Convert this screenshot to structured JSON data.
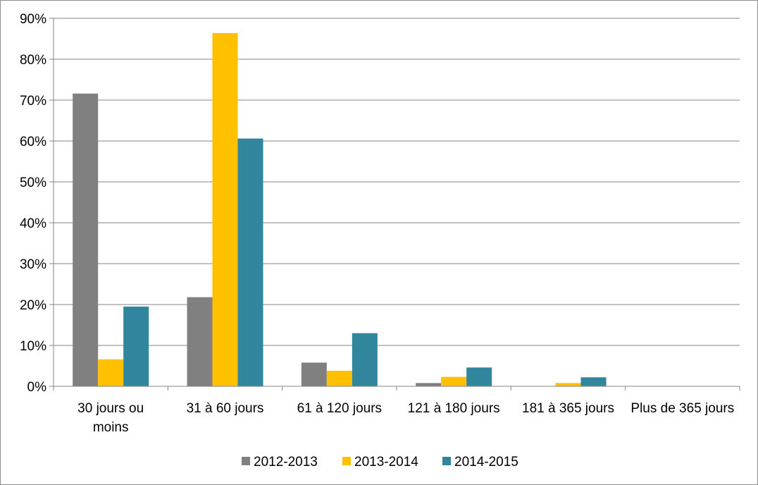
{
  "chart_data": {
    "type": "bar",
    "title": "",
    "xlabel": "",
    "ylabel": "",
    "ylim": [
      0,
      0.9
    ],
    "y_ticks": [
      "0%",
      "10%",
      "20%",
      "30%",
      "40%",
      "50%",
      "60%",
      "70%",
      "80%",
      "90%"
    ],
    "grid": true,
    "legend_position": "bottom",
    "categories": [
      [
        "30 jours ou",
        "moins"
      ],
      [
        "31 à 60 jours"
      ],
      [
        "61 à 120 jours"
      ],
      [
        "121 à 180 jours"
      ],
      [
        "181 à 365 jours"
      ],
      [
        "Plus de 365 jours"
      ]
    ],
    "series": [
      {
        "name": "2012-2013",
        "color": "#808080",
        "values": [
          0.716,
          0.218,
          0.058,
          0.008,
          0.0,
          0.0
        ]
      },
      {
        "name": "2013-2014",
        "color": "#ffc000",
        "values": [
          0.066,
          0.864,
          0.038,
          0.023,
          0.008,
          0.0
        ]
      },
      {
        "name": "2014-2015",
        "color": "#31859c",
        "values": [
          0.195,
          0.606,
          0.13,
          0.046,
          0.022,
          0.0
        ]
      }
    ]
  }
}
